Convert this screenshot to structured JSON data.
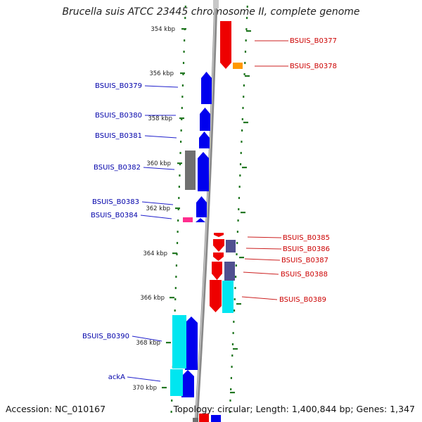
{
  "title": "Brucella suis ATCC 23445 chromosome II, complete genome",
  "footer": {
    "accession": "Accession: NC_010167",
    "topology": "Topology: circular; Length: 1,400,844 bp; Genes: 1,347"
  },
  "colors": {
    "forward_gene": "#0000ee",
    "reverse_gene": "#ee0000",
    "cyan_feature": "#00e6f0",
    "gray_feature": "#707070",
    "slate_feature": "#505090",
    "orange_feature": "#ff9900",
    "pink_feature": "#ff2d8e",
    "tick": "#227722",
    "backbone": "#8a8a8a"
  },
  "scale_labels": [
    "354 kbp",
    "356 kbp",
    "358 kbp",
    "360 kbp",
    "362 kbp",
    "364 kbp",
    "366 kbp",
    "368 kbp",
    "370 kbp"
  ],
  "forward_gene_labels": [
    "BSUIS_B0379",
    "BSUIS_B0380",
    "BSUIS_B0381",
    "BSUIS_B0382",
    "BSUIS_B0383",
    "BSUIS_B0384",
    "BSUIS_B0390",
    "ackA"
  ],
  "reverse_gene_labels": [
    "BSUIS_B0377",
    "BSUIS_B0378",
    "BSUIS_B0385",
    "BSUIS_B0386",
    "BSUIS_B0387",
    "BSUIS_B0388",
    "BSUIS_B0389"
  ]
}
